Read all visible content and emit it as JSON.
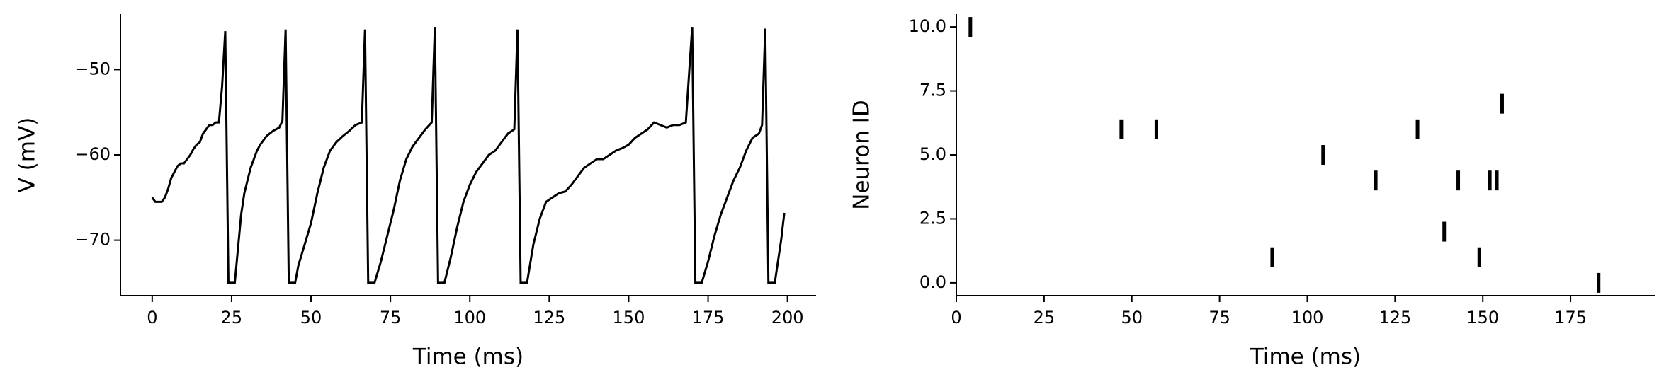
{
  "chart_data": [
    {
      "type": "line",
      "xlabel": "Time (ms)",
      "ylabel": "V (mV)",
      "color": "#000000",
      "x": [
        0,
        1,
        3,
        4,
        5,
        6,
        7,
        8,
        9,
        10,
        11,
        12,
        13,
        14,
        15,
        16,
        17,
        18,
        19,
        20,
        21,
        22,
        23,
        24,
        25,
        26,
        27,
        28,
        29,
        30,
        31,
        32,
        33,
        34,
        35,
        36,
        37,
        38,
        39,
        40,
        41,
        42,
        43,
        45,
        46,
        48,
        50,
        52,
        54,
        56,
        58,
        60,
        62,
        64,
        66,
        67,
        68,
        70,
        72,
        74,
        76,
        78,
        80,
        82,
        84,
        86,
        88,
        89,
        90,
        92,
        94,
        96,
        98,
        100,
        102,
        104,
        106,
        108,
        110,
        112,
        114,
        115,
        116,
        118,
        120,
        122,
        124,
        126,
        128,
        130,
        132,
        134,
        136,
        138,
        140,
        142,
        144,
        146,
        148,
        150,
        152,
        154,
        156,
        158,
        160,
        162,
        164,
        166,
        168,
        170,
        171,
        173,
        175,
        177,
        179,
        181,
        183,
        185,
        187,
        189,
        191,
        192,
        193,
        194,
        196,
        198,
        199
      ],
      "values": [
        -65,
        -65.5,
        -65.5,
        -65,
        -64,
        -62.7,
        -62,
        -61.3,
        -61,
        -61,
        -60.5,
        -60,
        -59.3,
        -58.8,
        -58.5,
        -57.5,
        -57,
        -56.5,
        -56.5,
        -56.2,
        -56.2,
        -52,
        -45.5,
        -75,
        -75,
        -75,
        -71,
        -67,
        -64.5,
        -63,
        -61.5,
        -60.5,
        -59.5,
        -58.8,
        -58.3,
        -57.8,
        -57.5,
        -57.2,
        -57,
        -56.8,
        -56,
        -45.3,
        -75,
        -75,
        -73,
        -70.5,
        -68,
        -64.5,
        -61.5,
        -59.5,
        -58.5,
        -57.8,
        -57.2,
        -56.5,
        -56.2,
        -45.3,
        -75,
        -75,
        -72.5,
        -69.5,
        -66.5,
        -63,
        -60.5,
        -59,
        -58,
        -57,
        -56.2,
        -45,
        -75,
        -75,
        -72,
        -68.5,
        -65.5,
        -63.5,
        -62,
        -61,
        -60,
        -59.5,
        -58.5,
        -57.5,
        -57,
        -45.3,
        -75,
        -75,
        -70.5,
        -67.5,
        -65.5,
        -65,
        -64.5,
        -64.3,
        -63.5,
        -62.5,
        -61.5,
        -61,
        -60.5,
        -60.5,
        -60,
        -59.5,
        -59.2,
        -58.8,
        -58,
        -57.5,
        -57,
        -56.2,
        -56.5,
        -56.8,
        -56.5,
        -56.5,
        -56.2,
        -45,
        -75,
        -75,
        -72.5,
        -69.5,
        -67,
        -65,
        -63,
        -61.5,
        -59.5,
        -58,
        -57.5,
        -56.5,
        -45.2,
        -75,
        -75,
        -70,
        -66.8
      ],
      "xlim": [
        -10,
        209
      ],
      "xticks": [
        0,
        25,
        50,
        75,
        100,
        125,
        150,
        175,
        200
      ],
      "ylim": [
        -76.5,
        -43.5
      ],
      "yticks": [
        {
          "value": -70,
          "label": "−70"
        },
        {
          "value": -60,
          "label": "−60"
        },
        {
          "value": -50,
          "label": "−50"
        }
      ]
    },
    {
      "type": "scatter",
      "xlabel": "Time (ms)",
      "ylabel": "Neuron ID",
      "color": "#000000",
      "x": [
        4,
        47,
        57,
        90,
        104.5,
        119.5,
        131.4,
        139,
        143,
        149,
        152,
        154,
        155.5,
        183
      ],
      "values": [
        10,
        6,
        6,
        1,
        5,
        4,
        6,
        2,
        4,
        1,
        4,
        4,
        7,
        0
      ],
      "xlim": [
        0,
        199
      ],
      "xticks": [
        0,
        25,
        50,
        75,
        100,
        125,
        150,
        175
      ],
      "ylim": [
        -0.5,
        10.5
      ],
      "yticks": [
        {
          "value": 0,
          "label": "0.0"
        },
        {
          "value": 2.5,
          "label": "2.5"
        },
        {
          "value": 5,
          "label": "5.0"
        },
        {
          "value": 7.5,
          "label": "7.5"
        },
        {
          "value": 10,
          "label": "10.0"
        }
      ]
    }
  ]
}
